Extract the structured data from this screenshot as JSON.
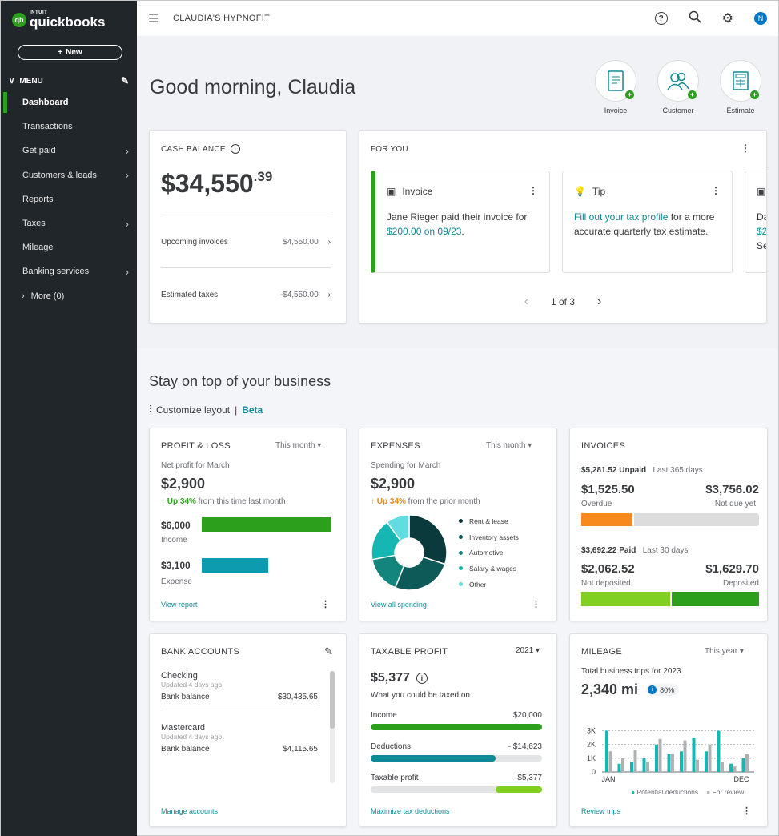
{
  "sidebar": {
    "logo_small": "INTUIT",
    "logo": "quickbooks",
    "new_label": "New",
    "menu_label": "MENU",
    "items": [
      {
        "label": "Dashboard",
        "active": true,
        "arrow": false
      },
      {
        "label": "Transactions",
        "arrow": false
      },
      {
        "label": "Get paid",
        "arrow": true
      },
      {
        "label": "Customers & leads",
        "arrow": true
      },
      {
        "label": "Reports",
        "arrow": false
      },
      {
        "label": "Taxes",
        "arrow": true
      },
      {
        "label": "Mileage",
        "arrow": false
      },
      {
        "label": "Banking services",
        "arrow": true
      }
    ],
    "more_label": "More (0)"
  },
  "topbar": {
    "company": "CLAUDIA'S HYPNOFIT",
    "avatar": "N"
  },
  "hero": {
    "greeting": "Good morning, Claudia",
    "quick_actions": [
      {
        "label": "Invoice",
        "icon": "invoice-icon"
      },
      {
        "label": "Customer",
        "icon": "customer-icon"
      },
      {
        "label": "Estimate",
        "icon": "estimate-icon"
      }
    ]
  },
  "cash_balance": {
    "title": "CASH BALANCE",
    "amount": "$34,550",
    "cents": ".39",
    "rows": [
      {
        "label": "Upcoming invoices",
        "value": "$4,550.00"
      },
      {
        "label": "Estimated taxes",
        "value": "-$4,550.00"
      }
    ]
  },
  "for_you": {
    "title": "FOR YOU",
    "cards": [
      {
        "title": "Invoice",
        "text1": "Jane Rieger paid their invoice for ",
        "link": "$200.00 on 09/23",
        "text2": "."
      },
      {
        "title": "Tip",
        "link": "Fill out your tax profile",
        "text2": " for a more accurate quarterly tax estimate."
      }
    ],
    "peek": {
      "line1": "Da",
      "line2": "$2",
      "line3": "Se"
    },
    "pager": "1 of 3"
  },
  "section": {
    "title": "Stay on top of your business",
    "customize": "Customize layout",
    "beta": "Beta"
  },
  "profit_loss": {
    "title": "PROFIT & LOSS",
    "period": "This month",
    "subtitle": "Net profit for March",
    "amount": "$2,900",
    "change": "Up 34%",
    "change_text": " from this time last month",
    "income_value": "$6,000",
    "income_label": "Income",
    "income": 6000,
    "expense_value": "$3,100",
    "expense_label": "Expense",
    "expense": 3100,
    "link": "View report"
  },
  "expenses": {
    "title": "EXPENSES",
    "period": "This month",
    "subtitle": "Spending for March",
    "amount": "$2,900",
    "change": "Up 34%",
    "change_text": " from the prior month",
    "link": "View all spending",
    "categories": [
      {
        "label": "Rent & lease",
        "color": "#0b3a3c",
        "share": 30
      },
      {
        "label": "Inventory assets",
        "color": "#0e5a58",
        "share": 26
      },
      {
        "label": "Automotive",
        "color": "#13857c",
        "share": 16
      },
      {
        "label": "Salary & wages",
        "color": "#16b7b2",
        "share": 18
      },
      {
        "label": "Other",
        "color": "#61dce0",
        "share": 10
      }
    ]
  },
  "invoices": {
    "title": "INVOICES",
    "unpaid_label": "$5,281.52 Unpaid",
    "unpaid_period": "Last 365 days",
    "overdue_amount": "$1,525.50",
    "overdue_label": "Overdue",
    "notdue_amount": "$3,756.02",
    "notdue_label": "Not due yet",
    "overdue_share": 0.29,
    "paid_label": "$3,692.22 Paid",
    "paid_period": "Last 30 days",
    "notdep_amount": "$2,062.52",
    "notdep_label": "Not deposited",
    "dep_amount": "$1,629.70",
    "dep_label": "Deposited",
    "notdep_share": 0.5,
    "colors": {
      "overdue": "#f7891d",
      "notdue": "#dcdcdc",
      "notdep": "#7fd020",
      "dep": "#2ca01c"
    }
  },
  "bank_accounts": {
    "title": "BANK ACCOUNTS",
    "accounts": [
      {
        "name": "Checking",
        "updated": "Updated 4 days ago",
        "balance_label": "Bank balance",
        "balance": "$30,435.65"
      },
      {
        "name": "Mastercard",
        "updated": "Updated 4 days ago",
        "balance_label": "Bank balance",
        "balance": "$4,115.65"
      }
    ],
    "link": "Manage accounts"
  },
  "taxable_profit": {
    "title": "TAXABLE PROFIT",
    "year": "2021",
    "amount": "$5,377",
    "subtitle": "What you could be taxed on",
    "rows": [
      {
        "label": "Income",
        "value": "$20,000",
        "fill": 1.0,
        "color": "#2ca01c"
      },
      {
        "label": "Deductions",
        "value": "- $14,623",
        "fill": 0.73,
        "color": "#0d8a95"
      },
      {
        "label": "Taxable profit",
        "value": "$5,377",
        "fill": 0.27,
        "color": "#7fd020",
        "align": "right"
      }
    ],
    "link": "Maximize tax deductions"
  },
  "mileage": {
    "title": "MILEAGE",
    "period": "This year",
    "subtitle": "Total business trips for 2023",
    "amount": "2,340 mi",
    "badge": "80%",
    "legend_potential": "Potential deductions",
    "legend_review": "For review",
    "link": "Review trips"
  },
  "chart_data": {
    "type": "bar",
    "yticks": [
      "3K",
      "2K",
      "1K",
      "0"
    ],
    "ylim": [
      0,
      3500
    ],
    "x_start": "JAN",
    "x_end": "DEC",
    "series": [
      {
        "name": "Potential deductions",
        "color": "#16b7b2",
        "values": [
          3000,
          600,
          700,
          1000,
          2000,
          1300,
          1500,
          2500,
          1500,
          3000,
          600,
          1000
        ]
      },
      {
        "name": "For review",
        "color": "#b0b1b5",
        "values": [
          1500,
          1000,
          1600,
          700,
          2400,
          1300,
          2300,
          900,
          2000,
          700,
          400,
          1300
        ]
      }
    ]
  }
}
